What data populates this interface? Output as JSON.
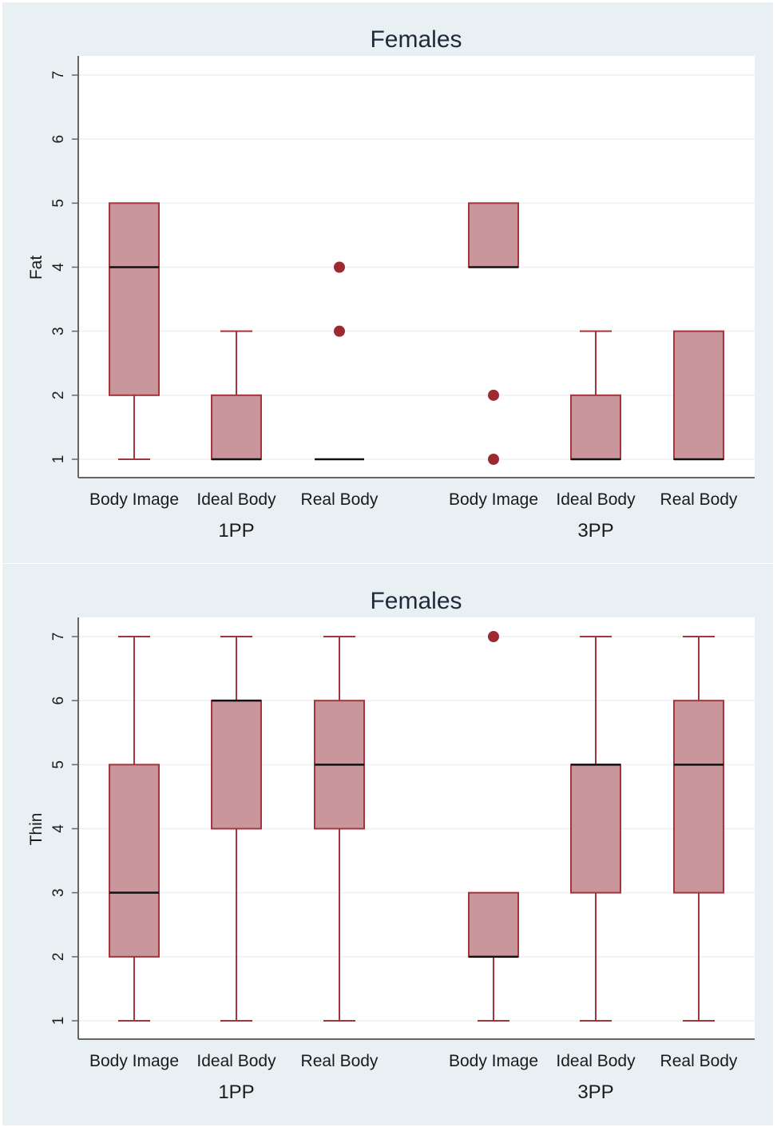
{
  "chart_data": [
    {
      "type": "box",
      "title": "Females",
      "ylabel": "Fat",
      "ylim": [
        1,
        7
      ],
      "yticks": [
        1,
        2,
        3,
        4,
        5,
        6,
        7
      ],
      "groups": [
        "1PP",
        "3PP"
      ],
      "categories": [
        "Body Image",
        "Ideal Body",
        "Real Body"
      ],
      "boxes": [
        {
          "group": "1PP",
          "category": "Body Image",
          "whisker_low": 1,
          "q1": 2,
          "median": 4,
          "q3": 5,
          "whisker_high": 5,
          "outliers": []
        },
        {
          "group": "1PP",
          "category": "Ideal Body",
          "whisker_low": 1,
          "q1": 1,
          "median": 1,
          "q3": 2,
          "whisker_high": 3,
          "outliers": []
        },
        {
          "group": "1PP",
          "category": "Real Body",
          "whisker_low": 1,
          "q1": 1,
          "median": 1,
          "q3": 1,
          "whisker_high": 1,
          "outliers": [
            3,
            4
          ]
        },
        {
          "group": "3PP",
          "category": "Body Image",
          "whisker_low": 4,
          "q1": 4,
          "median": 4,
          "q3": 5,
          "whisker_high": 5,
          "outliers": [
            1,
            2
          ]
        },
        {
          "group": "3PP",
          "category": "Ideal Body",
          "whisker_low": 1,
          "q1": 1,
          "median": 1,
          "q3": 2,
          "whisker_high": 3,
          "outliers": []
        },
        {
          "group": "3PP",
          "category": "Real Body",
          "whisker_low": 1,
          "q1": 1,
          "median": 1,
          "q3": 3,
          "whisker_high": 3,
          "outliers": []
        }
      ]
    },
    {
      "type": "box",
      "title": "Females",
      "ylabel": "Thin",
      "ylim": [
        1,
        7
      ],
      "yticks": [
        1,
        2,
        3,
        4,
        5,
        6,
        7
      ],
      "groups": [
        "1PP",
        "3PP"
      ],
      "categories": [
        "Body Image",
        "Ideal Body",
        "Real Body"
      ],
      "boxes": [
        {
          "group": "1PP",
          "category": "Body Image",
          "whisker_low": 1,
          "q1": 2,
          "median": 3,
          "q3": 5,
          "whisker_high": 7,
          "outliers": []
        },
        {
          "group": "1PP",
          "category": "Ideal Body",
          "whisker_low": 1,
          "q1": 4,
          "median": 6,
          "q3": 6,
          "whisker_high": 7,
          "outliers": []
        },
        {
          "group": "1PP",
          "category": "Real Body",
          "whisker_low": 1,
          "q1": 4,
          "median": 5,
          "q3": 6,
          "whisker_high": 7,
          "outliers": []
        },
        {
          "group": "3PP",
          "category": "Body Image",
          "whisker_low": 1,
          "q1": 2,
          "median": 2,
          "q3": 3,
          "whisker_high": 3,
          "outliers": [
            7
          ]
        },
        {
          "group": "3PP",
          "category": "Ideal Body",
          "whisker_low": 1,
          "q1": 3,
          "median": 5,
          "q3": 5,
          "whisker_high": 7,
          "outliers": []
        },
        {
          "group": "3PP",
          "category": "Real Body",
          "whisker_low": 1,
          "q1": 3,
          "median": 5,
          "q3": 6,
          "whisker_high": 7,
          "outliers": []
        }
      ]
    }
  ],
  "colors": {
    "panel_bg": "#e9f0f3",
    "plot_bg": "#ffffff",
    "box_fill": "#c9969b",
    "box_stroke": "#a3353d",
    "outlier": "#9b2a33",
    "median": "#111111",
    "grid": "#edf1f3",
    "axis": "#666666"
  }
}
